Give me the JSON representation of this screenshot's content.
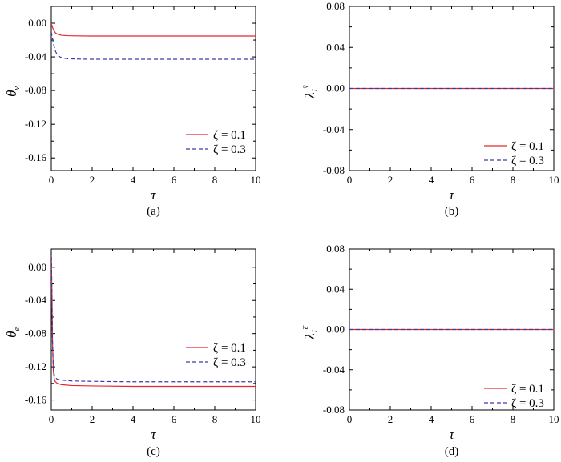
{
  "figure": {
    "panels": [
      "a",
      "b",
      "c",
      "d"
    ]
  },
  "chart_data": [
    {
      "type": "line",
      "caption": "(a)",
      "xlabel": "τ",
      "ylabel_main": "θ",
      "ylabel_sub": "v",
      "ylabel_sup": "",
      "xlim": [
        0,
        10
      ],
      "ylim": [
        -0.175,
        0.02
      ],
      "xticks": [
        0,
        2,
        4,
        6,
        8,
        10
      ],
      "yticks": [
        0.0,
        -0.04,
        -0.08,
        -0.12,
        -0.16
      ],
      "xtick_labels": [
        "0",
        "2",
        "4",
        "6",
        "8",
        "10"
      ],
      "ytick_labels": [
        "0.00",
        "-0.04",
        "-0.08",
        "-0.12",
        "-0.16"
      ],
      "legend_position": "lower-right",
      "series": [
        {
          "name": "ζ = 0.1",
          "color": "#e8262a",
          "dash": "solid",
          "x": [
            0,
            0.05,
            0.1,
            0.2,
            0.3,
            0.5,
            0.8,
            1.2,
            2,
            4,
            6,
            8,
            10
          ],
          "y": [
            0.0,
            -0.004,
            -0.0075,
            -0.0115,
            -0.013,
            -0.0143,
            -0.0148,
            -0.015,
            -0.0152,
            -0.0152,
            -0.0152,
            -0.0152,
            -0.0152
          ]
        },
        {
          "name": "ζ = 0.3",
          "color": "#3b3ba8",
          "dash": "dashed",
          "x": [
            0,
            0.05,
            0.1,
            0.2,
            0.3,
            0.5,
            0.8,
            1.2,
            2,
            4,
            6,
            8,
            10
          ],
          "y": [
            -0.01,
            -0.017,
            -0.024,
            -0.033,
            -0.038,
            -0.041,
            -0.0422,
            -0.0425,
            -0.0428,
            -0.0428,
            -0.0428,
            -0.0428,
            -0.0428
          ]
        }
      ]
    },
    {
      "type": "line",
      "caption": "(b)",
      "xlabel": "τ",
      "ylabel_main": "λ",
      "ylabel_sub": "1",
      "ylabel_sup": "v̄",
      "xlim": [
        0,
        10
      ],
      "ylim": [
        -0.08,
        0.08
      ],
      "xticks": [
        0,
        2,
        4,
        6,
        8,
        10
      ],
      "yticks": [
        0.08,
        0.04,
        0.0,
        -0.04,
        -0.08
      ],
      "xtick_labels": [
        "0",
        "2",
        "4",
        "6",
        "8",
        "10"
      ],
      "ytick_labels": [
        "0.08",
        "0.04",
        "0.00",
        "-0.04",
        "-0.08"
      ],
      "legend_position": "lower-right",
      "series": [
        {
          "name": "ζ = 0.1",
          "color": "#e8262a",
          "dash": "solid",
          "x": [
            0,
            10
          ],
          "y": [
            0,
            0
          ]
        },
        {
          "name": "ζ = 0.3",
          "color": "#3b3ba8",
          "dash": "dashed",
          "x": [
            0,
            10
          ],
          "y": [
            0,
            0
          ]
        }
      ]
    },
    {
      "type": "line",
      "caption": "(c)",
      "xlabel": "τ",
      "ylabel_main": "θ",
      "ylabel_sub": "e",
      "ylabel_sup": "",
      "xlim": [
        0,
        10
      ],
      "ylim": [
        -0.172,
        0.022
      ],
      "xticks": [
        0,
        2,
        4,
        6,
        8,
        10
      ],
      "yticks": [
        0.0,
        -0.04,
        -0.08,
        -0.12,
        -0.16
      ],
      "xtick_labels": [
        "0",
        "2",
        "4",
        "6",
        "8",
        "10"
      ],
      "ytick_labels": [
        "0.00",
        "-0.04",
        "-0.08",
        "-0.12",
        "-0.16"
      ],
      "legend_position": "right",
      "series": [
        {
          "name": "ζ = 0.1",
          "color": "#e8262a",
          "dash": "solid",
          "x": [
            0,
            0.03,
            0.06,
            0.1,
            0.15,
            0.2,
            0.3,
            0.5,
            1,
            2,
            4,
            6,
            8,
            10
          ],
          "y": [
            0.02,
            -0.03,
            -0.09,
            -0.125,
            -0.135,
            -0.138,
            -0.14,
            -0.1415,
            -0.1425,
            -0.143,
            -0.1435,
            -0.1435,
            -0.1435,
            -0.1435
          ]
        },
        {
          "name": "ζ = 0.3",
          "color": "#3b3ba8",
          "dash": "dashed",
          "x": [
            0,
            0.03,
            0.06,
            0.1,
            0.15,
            0.2,
            0.3,
            0.5,
            1,
            2,
            4,
            6,
            8,
            10
          ],
          "y": [
            0.02,
            -0.03,
            -0.09,
            -0.122,
            -0.13,
            -0.133,
            -0.135,
            -0.136,
            -0.137,
            -0.1375,
            -0.138,
            -0.138,
            -0.138,
            -0.138
          ]
        }
      ]
    },
    {
      "type": "line",
      "caption": "(d)",
      "xlabel": "τ",
      "ylabel_main": "λ",
      "ylabel_sub": "1",
      "ylabel_sup": "e̅",
      "xlim": [
        0,
        10
      ],
      "ylim": [
        -0.08,
        0.08
      ],
      "xticks": [
        0,
        2,
        4,
        6,
        8,
        10
      ],
      "yticks": [
        0.08,
        0.04,
        0.0,
        -0.04,
        -0.08
      ],
      "xtick_labels": [
        "0",
        "2",
        "4",
        "6",
        "8",
        "10"
      ],
      "ytick_labels": [
        "0.08",
        "0.04",
        "0.00",
        "-0.04",
        "-0.08"
      ],
      "legend_position": "lower-right",
      "series": [
        {
          "name": "ζ = 0.1",
          "color": "#e8262a",
          "dash": "solid",
          "x": [
            0,
            10
          ],
          "y": [
            0,
            0
          ]
        },
        {
          "name": "ζ = 0.3",
          "color": "#3b3ba8",
          "dash": "dashed",
          "x": [
            0,
            10
          ],
          "y": [
            0,
            0
          ]
        }
      ]
    }
  ]
}
